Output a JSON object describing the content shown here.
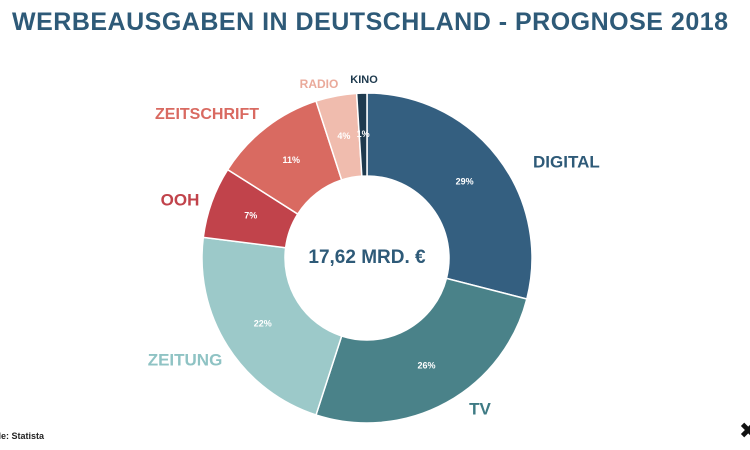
{
  "header": {
    "title": "WERBEAUSGABEN IN DEUTSCHLAND - PROGNOSE 2018"
  },
  "footer": {
    "source": "lle: Statista",
    "close_glyph": "✖"
  },
  "chart_data": {
    "type": "pie",
    "title": "WERBEAUSGABEN IN DEUTSCHLAND - PROGNOSE 2018",
    "center_label": "17,62 MRD. €",
    "slices": [
      {
        "name": "DIGITAL",
        "value": 29,
        "value_label": "29%",
        "color": "#345f80",
        "label_color": "#2e5a78"
      },
      {
        "name": "TV",
        "value": 26,
        "value_label": "26%",
        "color": "#4a8289",
        "label_color": "#3e7a84"
      },
      {
        "name": "ZEITUNG",
        "value": 22,
        "value_label": "22%",
        "color": "#9cc9c9",
        "label_color": "#8fc3c4"
      },
      {
        "name": "OOH",
        "value": 7,
        "value_label": "7%",
        "color": "#c1434b",
        "label_color": "#c1434b"
      },
      {
        "name": "ZEITSCHRIFT",
        "value": 11,
        "value_label": "11%",
        "color": "#d96a61",
        "label_color": "#d96a61"
      },
      {
        "name": "RADIO",
        "value": 4,
        "value_label": "4%",
        "color": "#f0bcae",
        "label_color": "#eaaa9b"
      },
      {
        "name": "KINO",
        "value": 1,
        "value_label": "1%",
        "color": "#1e3a4e",
        "label_color": "#1e3a4e"
      }
    ]
  }
}
